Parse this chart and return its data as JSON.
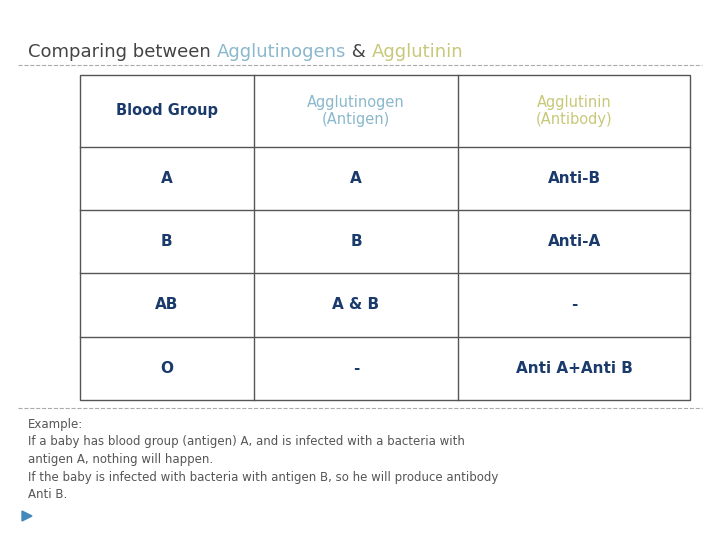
{
  "title_prefix": "Comparing between ",
  "title_word1": "Agglutinogens",
  "title_between": " & ",
  "title_word2": "Agglutinin",
  "title_prefix_color": "#444444",
  "title_word1_color": "#8ab8cc",
  "title_between_color": "#444444",
  "title_word2_color": "#c8c87a",
  "col_headers": [
    "Blood Group",
    "Agglutinogen\n(Antigen)",
    "Agglutinin\n(Antibody)"
  ],
  "col_header_colors": [
    "#1a3a6b",
    "#8ab8cc",
    "#c8c87a"
  ],
  "rows": [
    [
      "A",
      "A",
      "Anti-B"
    ],
    [
      "B",
      "B",
      "Anti-A"
    ],
    [
      "AB",
      "A & B",
      "-"
    ],
    [
      "O",
      "-",
      "Anti A+Anti B"
    ]
  ],
  "row_color": "#1a3a6b",
  "bg_color": "#ffffff",
  "table_line_color": "#555555",
  "example_text": "Example:\nIf a baby has blood group (antigen) A, and is infected with a bacteria with\nantigen A, nothing will happen.\nIf the baby is infected with bacteria with antigen B, so he will produce antibody\nAnti B.",
  "example_text_color": "#555555",
  "dashed_line_color": "#aaaaaa",
  "title_fontsize": 13,
  "header_fontsize": 10.5,
  "cell_fontsize": 11,
  "example_fontsize": 8.5
}
